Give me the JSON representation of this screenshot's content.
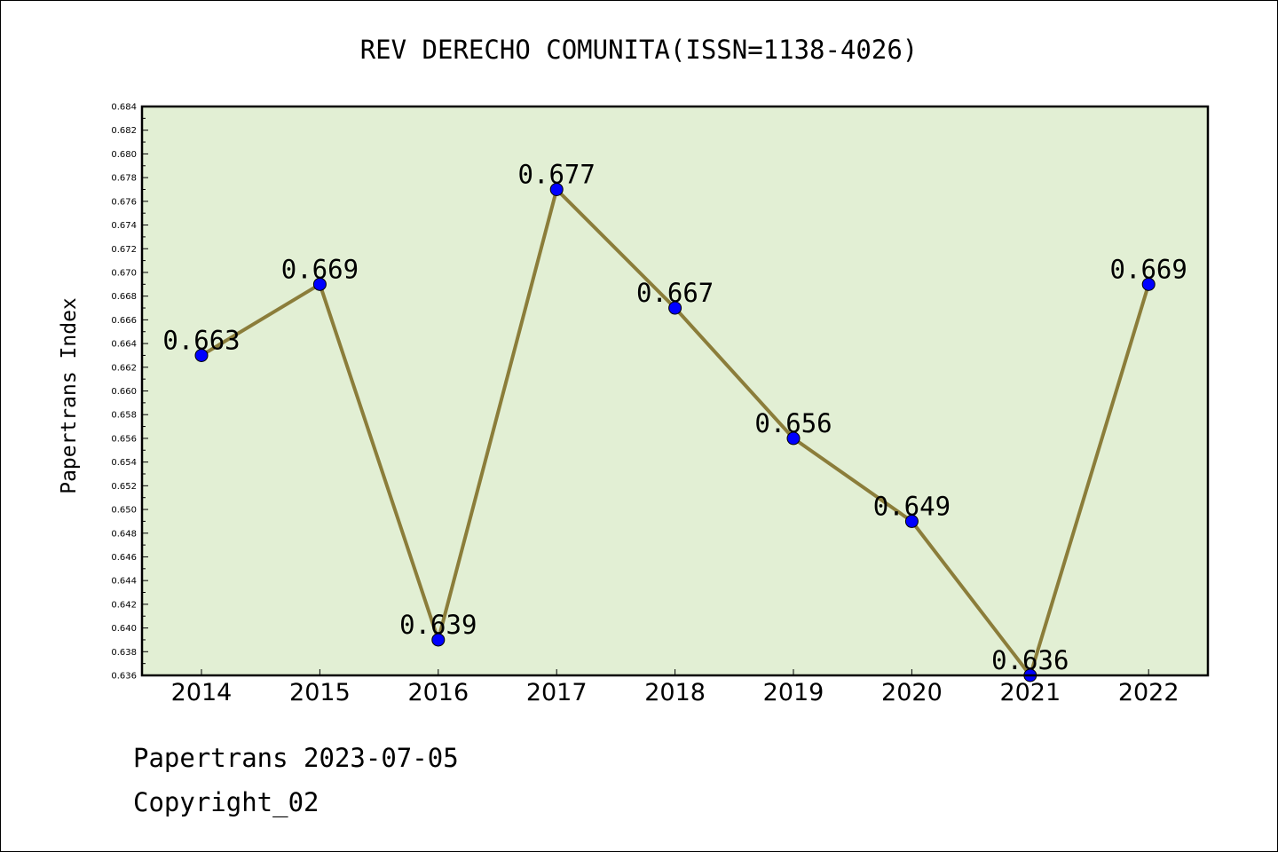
{
  "chart_data": {
    "type": "line",
    "title": "REV DERECHO COMUNITA(ISSN=1138-4026)",
    "xlabel": "",
    "ylabel": "Papertrans Index",
    "categories": [
      "2014",
      "2015",
      "2016",
      "2017",
      "2018",
      "2019",
      "2020",
      "2021",
      "2022"
    ],
    "values": [
      0.663,
      0.669,
      0.639,
      0.677,
      0.667,
      0.656,
      0.649,
      0.636,
      0.669
    ],
    "data_labels": [
      "0.663",
      "0.669",
      "0.639",
      "0.677",
      "0.667",
      "0.656",
      "0.649",
      "0.636",
      "0.669"
    ],
    "ylim": [
      0.636,
      0.684
    ],
    "yticks": [
      "0.636",
      "0.638",
      "0.640",
      "0.642",
      "0.644",
      "0.646",
      "0.648",
      "0.650",
      "0.652",
      "0.654",
      "0.656",
      "0.658",
      "0.660",
      "0.662",
      "0.664",
      "0.666",
      "0.668",
      "0.670",
      "0.672",
      "0.674",
      "0.676",
      "0.678",
      "0.680",
      "0.682",
      "0.684"
    ],
    "grid": false,
    "colors": {
      "plot_background": "#e2efd4",
      "line": "#8b7d3a",
      "marker": "#0000ff"
    }
  },
  "footer": {
    "line1": "Papertrans 2023-07-05",
    "line2": "Copyright_02"
  }
}
